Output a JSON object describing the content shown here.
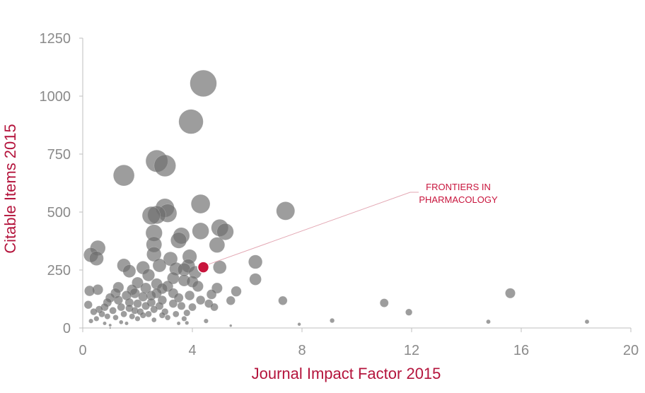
{
  "chart_data": {
    "type": "scatter",
    "title": "",
    "xlabel": "Journal Impact Factor 2015",
    "ylabel": "Citable Items 2015",
    "xlim": [
      0,
      20
    ],
    "ylim": [
      0,
      1250
    ],
    "xticks": [
      "0",
      "4",
      "8",
      "12",
      "16",
      "20"
    ],
    "yticks": [
      "0",
      "250",
      "500",
      "750",
      "1000",
      "1250"
    ],
    "grid": false,
    "bubble_size_encodes": "citable items",
    "colors": {
      "points": "#6e6e6e",
      "highlight": "#c8143c",
      "axis_label": "#b4143c",
      "axis_line": "#bfbfbf",
      "ticks": "#8a8a8a"
    },
    "highlight": {
      "label": "FRONTIERS IN PHARMACOLOGY",
      "label_lines": [
        "FRONTIERS IN",
        "PHARMACOLOGY"
      ],
      "x": 4.4,
      "y": 262
    },
    "points": [
      {
        "x": 4.4,
        "y": 1055
      },
      {
        "x": 3.95,
        "y": 890
      },
      {
        "x": 2.7,
        "y": 720
      },
      {
        "x": 3.0,
        "y": 700
      },
      {
        "x": 1.5,
        "y": 658
      },
      {
        "x": 7.4,
        "y": 505
      },
      {
        "x": 4.3,
        "y": 535
      },
      {
        "x": 3.0,
        "y": 518
      },
      {
        "x": 3.1,
        "y": 495
      },
      {
        "x": 2.5,
        "y": 485
      },
      {
        "x": 2.7,
        "y": 488
      },
      {
        "x": 5.0,
        "y": 432
      },
      {
        "x": 4.3,
        "y": 418
      },
      {
        "x": 5.2,
        "y": 415
      },
      {
        "x": 2.6,
        "y": 410
      },
      {
        "x": 3.6,
        "y": 398
      },
      {
        "x": 3.5,
        "y": 378
      },
      {
        "x": 4.9,
        "y": 358
      },
      {
        "x": 2.6,
        "y": 360
      },
      {
        "x": 6.3,
        "y": 285
      },
      {
        "x": 3.9,
        "y": 308
      },
      {
        "x": 2.6,
        "y": 318
      },
      {
        "x": 3.2,
        "y": 298
      },
      {
        "x": 5.0,
        "y": 262
      },
      {
        "x": 3.7,
        "y": 252
      },
      {
        "x": 3.85,
        "y": 268
      },
      {
        "x": 4.1,
        "y": 240
      },
      {
        "x": 3.4,
        "y": 255
      },
      {
        "x": 6.3,
        "y": 210
      },
      {
        "x": 5.6,
        "y": 158
      },
      {
        "x": 4.9,
        "y": 172
      },
      {
        "x": 4.2,
        "y": 180
      },
      {
        "x": 7.3,
        "y": 118
      },
      {
        "x": 11.0,
        "y": 108
      },
      {
        "x": 15.6,
        "y": 150
      },
      {
        "x": 11.9,
        "y": 68
      },
      {
        "x": 9.1,
        "y": 32
      },
      {
        "x": 14.8,
        "y": 27
      },
      {
        "x": 18.4,
        "y": 27
      },
      {
        "x": 7.9,
        "y": 16
      },
      {
        "x": 5.4,
        "y": 10
      },
      {
        "x": 1.5,
        "y": 270
      },
      {
        "x": 1.7,
        "y": 245
      },
      {
        "x": 2.2,
        "y": 260
      },
      {
        "x": 2.0,
        "y": 195
      },
      {
        "x": 2.4,
        "y": 228
      },
      {
        "x": 2.8,
        "y": 270
      },
      {
        "x": 3.3,
        "y": 215
      },
      {
        "x": 2.3,
        "y": 172
      },
      {
        "x": 2.9,
        "y": 170
      },
      {
        "x": 3.7,
        "y": 205
      },
      {
        "x": 4.0,
        "y": 200
      },
      {
        "x": 3.9,
        "y": 140
      },
      {
        "x": 4.3,
        "y": 120
      },
      {
        "x": 4.6,
        "y": 105
      },
      {
        "x": 4.8,
        "y": 90
      },
      {
        "x": 3.3,
        "y": 150
      },
      {
        "x": 2.7,
        "y": 150
      },
      {
        "x": 2.5,
        "y": 140
      },
      {
        "x": 3.5,
        "y": 130
      },
      {
        "x": 5.4,
        "y": 118
      },
      {
        "x": 4.7,
        "y": 145
      },
      {
        "x": 3.3,
        "y": 105
      },
      {
        "x": 3.6,
        "y": 95
      },
      {
        "x": 2.9,
        "y": 120
      },
      {
        "x": 2.2,
        "y": 135
      },
      {
        "x": 1.9,
        "y": 150
      },
      {
        "x": 2.0,
        "y": 105
      },
      {
        "x": 1.7,
        "y": 110
      },
      {
        "x": 1.6,
        "y": 140
      },
      {
        "x": 1.4,
        "y": 90
      },
      {
        "x": 1.3,
        "y": 120
      },
      {
        "x": 1.2,
        "y": 150
      },
      {
        "x": 1.1,
        "y": 75
      },
      {
        "x": 1.5,
        "y": 60
      },
      {
        "x": 1.8,
        "y": 50
      },
      {
        "x": 2.1,
        "y": 70
      },
      {
        "x": 2.4,
        "y": 60
      },
      {
        "x": 2.6,
        "y": 80
      },
      {
        "x": 2.8,
        "y": 95
      },
      {
        "x": 3.0,
        "y": 70
      },
      {
        "x": 3.1,
        "y": 45
      },
      {
        "x": 3.4,
        "y": 60
      },
      {
        "x": 3.8,
        "y": 65
      },
      {
        "x": 4.0,
        "y": 90
      },
      {
        "x": 2.3,
        "y": 95
      },
      {
        "x": 2.0,
        "y": 40
      },
      {
        "x": 2.6,
        "y": 35
      },
      {
        "x": 2.9,
        "y": 55
      },
      {
        "x": 3.7,
        "y": 40
      },
      {
        "x": 4.5,
        "y": 30
      },
      {
        "x": 3.5,
        "y": 20
      },
      {
        "x": 3.8,
        "y": 22
      },
      {
        "x": 1.0,
        "y": 130
      },
      {
        "x": 0.9,
        "y": 110
      },
      {
        "x": 0.8,
        "y": 90
      },
      {
        "x": 0.7,
        "y": 60
      },
      {
        "x": 0.6,
        "y": 80
      },
      {
        "x": 0.5,
        "y": 40
      },
      {
        "x": 0.4,
        "y": 70
      },
      {
        "x": 0.3,
        "y": 30
      },
      {
        "x": 0.25,
        "y": 160
      },
      {
        "x": 0.55,
        "y": 165
      },
      {
        "x": 0.3,
        "y": 315
      },
      {
        "x": 0.5,
        "y": 300
      },
      {
        "x": 0.55,
        "y": 345
      },
      {
        "x": 1.0,
        "y": 12
      },
      {
        "x": 1.0,
        "y": 0
      },
      {
        "x": 1.2,
        "y": 45
      },
      {
        "x": 1.4,
        "y": 25
      },
      {
        "x": 1.6,
        "y": 20
      },
      {
        "x": 1.7,
        "y": 85
      },
      {
        "x": 1.9,
        "y": 75
      },
      {
        "x": 2.2,
        "y": 55
      },
      {
        "x": 2.5,
        "y": 110
      },
      {
        "x": 2.7,
        "y": 190
      },
      {
        "x": 3.1,
        "y": 180
      },
      {
        "x": 1.8,
        "y": 165
      },
      {
        "x": 1.3,
        "y": 175
      },
      {
        "x": 0.9,
        "y": 50
      },
      {
        "x": 0.8,
        "y": 20
      },
      {
        "x": 0.2,
        "y": 100
      }
    ]
  }
}
